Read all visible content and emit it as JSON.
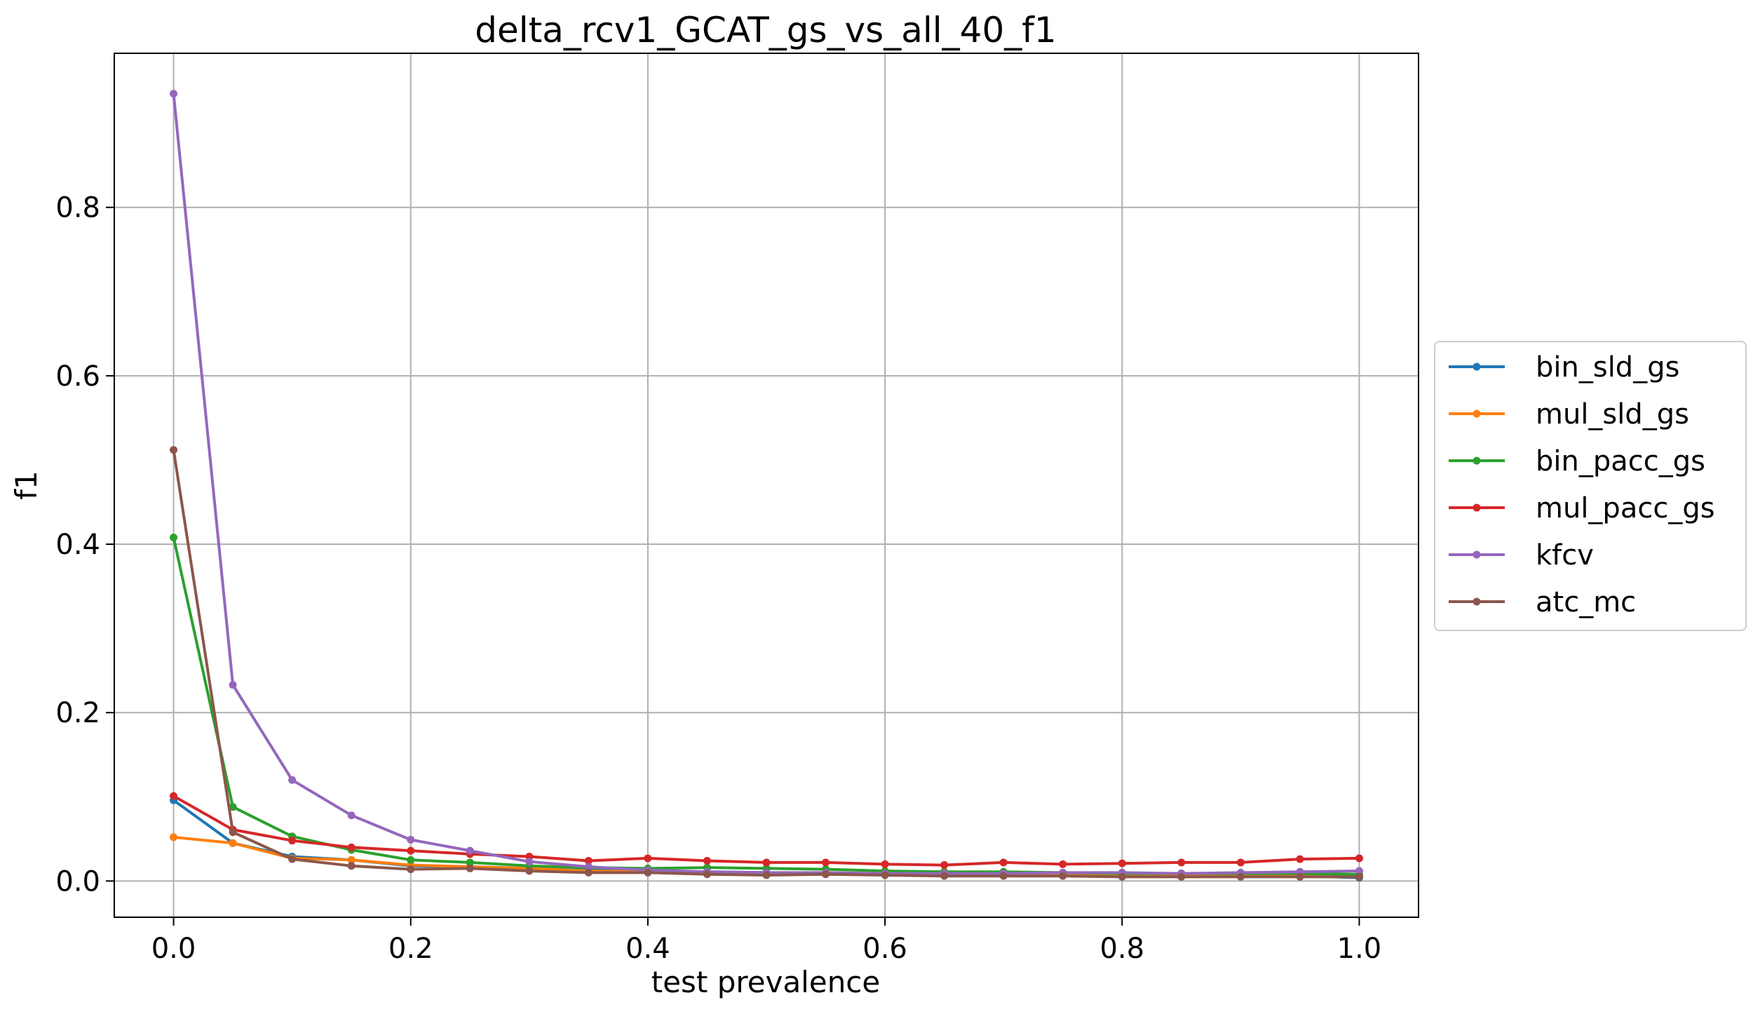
{
  "chart_data": {
    "type": "line",
    "title": "delta_rcv1_GCAT_gs_vs_all_40_f1",
    "xlabel": "test prevalence",
    "ylabel": "f1",
    "xlim": [
      -0.05,
      1.05
    ],
    "ylim": [
      -0.043,
      0.983
    ],
    "xticks": [
      0.0,
      0.2,
      0.4,
      0.6,
      0.8,
      1.0
    ],
    "xtick_labels": [
      "0.0",
      "0.2",
      "0.4",
      "0.6",
      "0.8",
      "1.0"
    ],
    "yticks": [
      0.0,
      0.2,
      0.4,
      0.6,
      0.8
    ],
    "ytick_labels": [
      "0.0",
      "0.2",
      "0.4",
      "0.6",
      "0.8"
    ],
    "grid": true,
    "legend_position": "center-right-outside",
    "x": [
      0.0,
      0.05,
      0.1,
      0.15,
      0.2,
      0.25,
      0.3,
      0.35,
      0.4,
      0.45,
      0.5,
      0.55,
      0.6,
      0.65,
      0.7,
      0.75,
      0.8,
      0.85,
      0.9,
      0.95,
      1.0
    ],
    "series": [
      {
        "name": "bin_sld_gs",
        "color": "#1f77b4",
        "values": [
          0.096,
          0.045,
          0.029,
          0.025,
          0.018,
          0.017,
          0.015,
          0.013,
          0.012,
          0.011,
          0.01,
          0.009,
          0.008,
          0.008,
          0.007,
          0.007,
          0.006,
          0.006,
          0.006,
          0.006,
          0.004
        ]
      },
      {
        "name": "mul_sld_gs",
        "color": "#ff7f0e",
        "values": [
          0.052,
          0.045,
          0.027,
          0.025,
          0.019,
          0.017,
          0.015,
          0.012,
          0.011,
          0.01,
          0.01,
          0.009,
          0.008,
          0.008,
          0.008,
          0.007,
          0.007,
          0.007,
          0.007,
          0.007,
          0.006
        ]
      },
      {
        "name": "bin_pacc_gs",
        "color": "#2ca02c",
        "values": [
          0.408,
          0.088,
          0.053,
          0.037,
          0.025,
          0.022,
          0.018,
          0.016,
          0.015,
          0.016,
          0.015,
          0.014,
          0.012,
          0.011,
          0.011,
          0.01,
          0.009,
          0.009,
          0.009,
          0.009,
          0.008
        ]
      },
      {
        "name": "mul_pacc_gs",
        "color": "#d62728",
        "values": [
          0.101,
          0.061,
          0.048,
          0.04,
          0.036,
          0.032,
          0.029,
          0.024,
          0.027,
          0.024,
          0.022,
          0.022,
          0.02,
          0.019,
          0.022,
          0.02,
          0.021,
          0.022,
          0.022,
          0.026,
          0.027
        ]
      },
      {
        "name": "kfcv",
        "color": "#9467bd",
        "values": [
          0.935,
          0.233,
          0.12,
          0.078,
          0.049,
          0.036,
          0.023,
          0.017,
          0.013,
          0.011,
          0.01,
          0.01,
          0.009,
          0.009,
          0.009,
          0.01,
          0.01,
          0.009,
          0.01,
          0.011,
          0.012
        ]
      },
      {
        "name": "atc_mc",
        "color": "#8c564b",
        "values": [
          0.512,
          0.058,
          0.026,
          0.018,
          0.014,
          0.015,
          0.012,
          0.01,
          0.01,
          0.008,
          0.007,
          0.008,
          0.007,
          0.006,
          0.006,
          0.006,
          0.005,
          0.005,
          0.005,
          0.005,
          0.005
        ]
      }
    ]
  }
}
